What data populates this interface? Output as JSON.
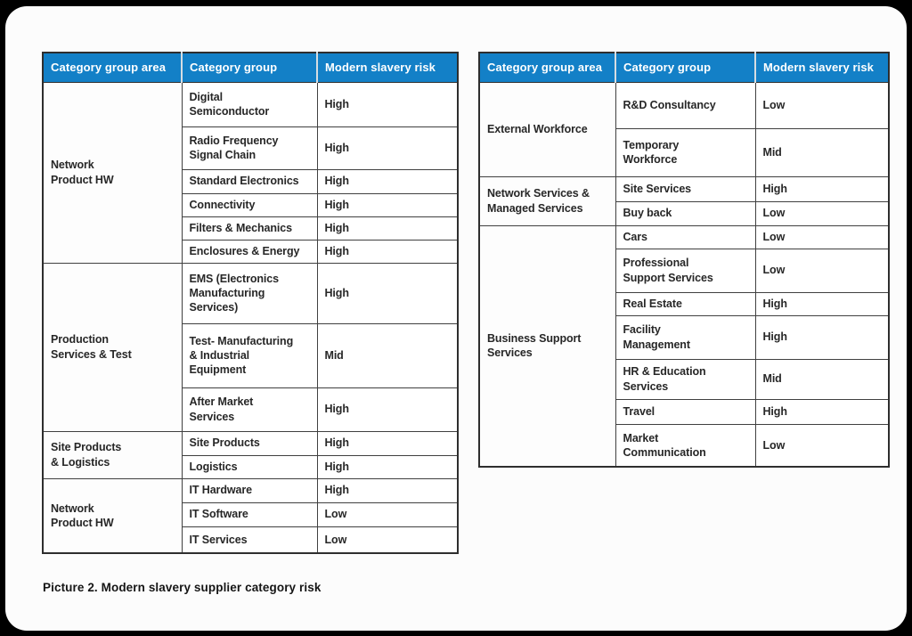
{
  "page": {
    "caption": "Picture 2. Modern slavery supplier category risk"
  },
  "colors": {
    "page_bg": "#000000",
    "card_bg": "#fcfcfc",
    "header_bg": "#1380c7",
    "header_text": "#ffffff",
    "cell_border": "#404040",
    "cell_text": "#272727"
  },
  "tables": [
    {
      "id": "left",
      "headers": [
        "Category group area",
        "Category group",
        "Modern slavery risk"
      ],
      "groups": [
        {
          "area": "Network\nProduct HW",
          "rows": [
            {
              "category": "Digital\nSemiconductor",
              "risk": "High"
            },
            {
              "category": "Radio Frequency\nSignal Chain",
              "risk": "High"
            },
            {
              "category": "Standard Electronics",
              "risk": "High"
            },
            {
              "category": "Connectivity",
              "risk": "High"
            },
            {
              "category": "Filters & Mechanics",
              "risk": "High"
            },
            {
              "category": "Enclosures & Energy",
              "risk": "High"
            }
          ]
        },
        {
          "area": "Production\nServices & Test",
          "rows": [
            {
              "category": "EMS (Electronics\nManufacturing\nServices)",
              "risk": "High"
            },
            {
              "category": "Test- Manufacturing\n& Industrial\nEquipment",
              "risk": "Mid"
            },
            {
              "category": "After Market\nServices",
              "risk": "High"
            }
          ]
        },
        {
          "area": "Site Products\n& Logistics",
          "rows": [
            {
              "category": "Site Products",
              "risk": "High"
            },
            {
              "category": "Logistics",
              "risk": "High"
            }
          ]
        },
        {
          "area": "Network\nProduct HW",
          "rows": [
            {
              "category": "IT Hardware",
              "risk": "High"
            },
            {
              "category": "IT Software",
              "risk": "Low"
            },
            {
              "category": "IT Services",
              "risk": "Low"
            }
          ]
        }
      ]
    },
    {
      "id": "right",
      "headers": [
        "Category group area",
        "Category group",
        "Modern slavery risk"
      ],
      "groups": [
        {
          "area": "External Workforce",
          "rows": [
            {
              "category": "R&D Consultancy",
              "risk": "Low"
            },
            {
              "category": "Temporary\nWorkforce",
              "risk": "Mid"
            }
          ]
        },
        {
          "area": "Network Services &\nManaged Services",
          "rows": [
            {
              "category": "Site Services",
              "risk": "High"
            },
            {
              "category": "Buy back",
              "risk": "Low"
            }
          ]
        },
        {
          "area": "Business Support\nServices",
          "rows": [
            {
              "category": "Cars",
              "risk": "Low"
            },
            {
              "category": "Professional\nSupport Services",
              "risk": "Low"
            },
            {
              "category": "Real Estate",
              "risk": "High"
            },
            {
              "category": "Facility\nManagement",
              "risk": "High"
            },
            {
              "category": "HR & Education\nServices",
              "risk": "Mid"
            },
            {
              "category": "Travel",
              "risk": "High"
            },
            {
              "category": "Market\nCommunication",
              "risk": "Low"
            }
          ]
        }
      ]
    }
  ]
}
